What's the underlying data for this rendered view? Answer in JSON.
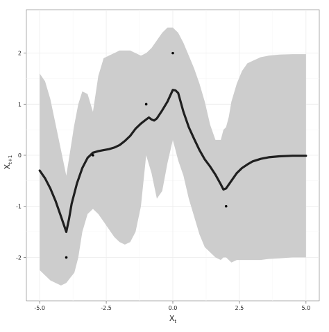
{
  "chart_data": {
    "type": "line",
    "xlabel_main": "X",
    "xlabel_sub": "t",
    "ylabel_main": "X",
    "ylabel_sub": "t+1",
    "xlim": [
      -5.5,
      5.5
    ],
    "ylim": [
      -2.85,
      2.85
    ],
    "x_ticks": [
      -5.0,
      -2.5,
      0.0,
      2.5,
      5.0
    ],
    "x_tick_labels": [
      "-5.0",
      "-2.5",
      "0.0",
      "2.5",
      "5.0"
    ],
    "y_ticks": [
      -2,
      -1,
      0,
      1,
      2
    ],
    "y_tick_labels": [
      "-2",
      "-1",
      "0",
      "1",
      "2"
    ],
    "grid": true,
    "colors": {
      "panel": "#ffffff",
      "grid_major": "#ececec",
      "grid_minor": "#f6f6f6",
      "ribbon": "#cdcdcd",
      "line": "#1f1f1f",
      "points": "#000000",
      "axis": "#777777"
    },
    "band": {
      "x": [
        -5.0,
        -4.8,
        -4.6,
        -4.4,
        -4.2,
        -4.0,
        -3.85,
        -3.7,
        -3.55,
        -3.4,
        -3.2,
        -3.0,
        -2.8,
        -2.6,
        -2.4,
        -2.2,
        -2.0,
        -1.8,
        -1.6,
        -1.4,
        -1.2,
        -1.0,
        -0.8,
        -0.6,
        -0.4,
        -0.2,
        0.0,
        0.2,
        0.4,
        0.6,
        0.8,
        1.0,
        1.2,
        1.4,
        1.6,
        1.8,
        1.9,
        2.0,
        2.1,
        2.2,
        2.4,
        2.6,
        2.8,
        3.0,
        3.3,
        3.6,
        4.0,
        4.5,
        5.0
      ],
      "upper": [
        1.6,
        1.45,
        1.1,
        0.6,
        0.1,
        -0.4,
        0.1,
        0.6,
        1.0,
        1.25,
        1.2,
        0.85,
        1.55,
        1.9,
        1.95,
        2.0,
        2.05,
        2.05,
        2.05,
        2.0,
        1.95,
        2.0,
        2.1,
        2.25,
        2.4,
        2.5,
        2.5,
        2.4,
        2.2,
        1.95,
        1.7,
        1.4,
        1.05,
        0.6,
        0.3,
        0.3,
        0.5,
        0.55,
        0.75,
        1.05,
        1.4,
        1.65,
        1.8,
        1.85,
        1.92,
        1.95,
        1.97,
        1.98,
        1.98
      ],
      "lower": [
        -2.25,
        -2.35,
        -2.45,
        -2.5,
        -2.55,
        -2.5,
        -2.4,
        -2.3,
        -2.0,
        -1.5,
        -1.15,
        -1.05,
        -1.15,
        -1.3,
        -1.45,
        -1.6,
        -1.7,
        -1.75,
        -1.7,
        -1.5,
        -1.0,
        0.0,
        -0.35,
        -0.85,
        -0.7,
        -0.15,
        0.3,
        -0.1,
        -0.4,
        -0.85,
        -1.2,
        -1.55,
        -1.8,
        -1.9,
        -2.0,
        -2.05,
        -2.0,
        -2.0,
        -2.05,
        -2.1,
        -2.05,
        -2.05,
        -2.05,
        -2.05,
        -2.05,
        -2.03,
        -2.02,
        -2.0,
        -2.0
      ]
    },
    "series": [
      {
        "x": [
          -5.0,
          -4.8,
          -4.6,
          -4.4,
          -4.2,
          -4.1,
          -4.0,
          -3.9,
          -3.8,
          -3.6,
          -3.4,
          -3.2,
          -3.0,
          -2.8,
          -2.6,
          -2.4,
          -2.2,
          -2.0,
          -1.8,
          -1.6,
          -1.4,
          -1.2,
          -1.0,
          -0.9,
          -0.8,
          -0.7,
          -0.6,
          -0.4,
          -0.2,
          0.0,
          0.1,
          0.2,
          0.4,
          0.6,
          0.8,
          1.0,
          1.2,
          1.4,
          1.6,
          1.8,
          1.9,
          2.0,
          2.2,
          2.4,
          2.6,
          2.8,
          3.0,
          3.3,
          3.6,
          4.0,
          4.5,
          5.0
        ],
        "y": [
          -0.3,
          -0.45,
          -0.65,
          -0.9,
          -1.2,
          -1.35,
          -1.5,
          -1.25,
          -0.95,
          -0.55,
          -0.25,
          -0.05,
          0.05,
          0.08,
          0.1,
          0.12,
          0.15,
          0.2,
          0.28,
          0.38,
          0.52,
          0.62,
          0.7,
          0.74,
          0.7,
          0.68,
          0.72,
          0.88,
          1.05,
          1.28,
          1.27,
          1.22,
          0.85,
          0.55,
          0.32,
          0.1,
          -0.08,
          -0.22,
          -0.38,
          -0.57,
          -0.67,
          -0.65,
          -0.5,
          -0.35,
          -0.25,
          -0.18,
          -0.12,
          -0.07,
          -0.04,
          -0.02,
          -0.01,
          -0.01
        ]
      }
    ],
    "points": {
      "x": [
        -4.0,
        -3.0,
        -1.0,
        0.0,
        2.0
      ],
      "y": [
        -2.0,
        0.0,
        1.0,
        2.0,
        -1.0
      ]
    }
  }
}
